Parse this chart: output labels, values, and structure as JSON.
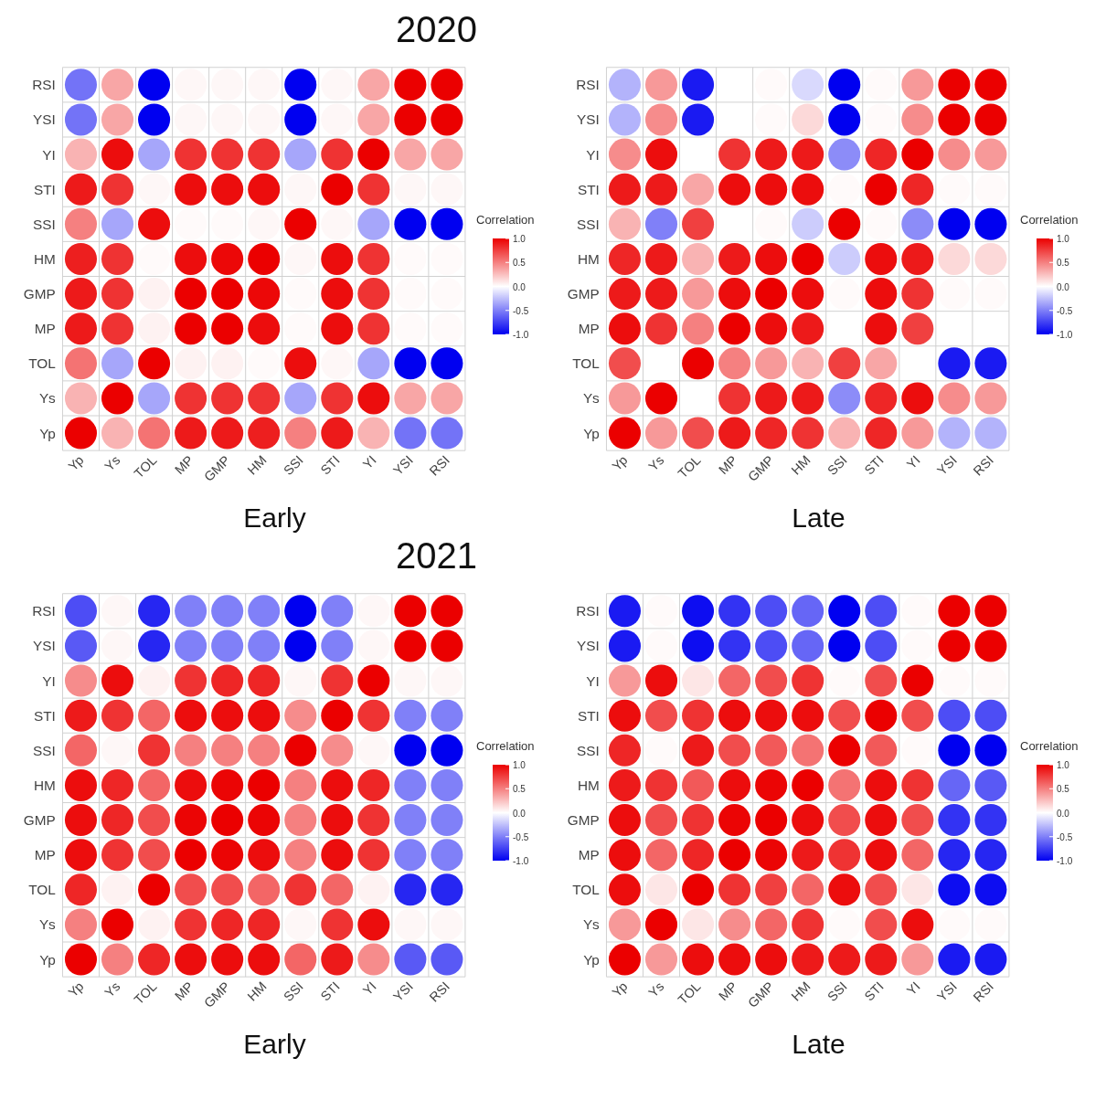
{
  "chart_data": [
    {
      "type": "heatmap",
      "title": "2020",
      "xlabel": "Early",
      "clabel": "Correlation",
      "grid": true,
      "categories": [
        "Yp",
        "Ys",
        "TOL",
        "MP",
        "GMP",
        "HM",
        "SSI",
        "STI",
        "YI",
        "YSI",
        "RSI"
      ],
      "y_categories": [
        "RSI",
        "YSI",
        "YI",
        "STI",
        "SSI",
        "HM",
        "GMP",
        "MP",
        "TOL",
        "Ys",
        "Yp"
      ],
      "clim": [
        -1,
        1
      ],
      "cticks": [
        {
          "value": 1,
          "label": "1.0"
        },
        {
          "value": 0.5,
          "label": "0.5"
        },
        {
          "value": 0,
          "label": "0.0"
        },
        {
          "value": -0.5,
          "label": "-0.5"
        },
        {
          "value": -1,
          "label": "-1.0"
        }
      ],
      "cells": [
        [
          -0.55,
          0.35,
          -1,
          0.03,
          0.03,
          0.03,
          -1,
          0.03,
          0.35,
          1,
          1
        ],
        [
          -0.55,
          0.35,
          -1,
          0.03,
          0.03,
          0.03,
          -1,
          0.03,
          0.35,
          1,
          1
        ],
        [
          0.3,
          0.95,
          -0.35,
          0.8,
          0.8,
          0.8,
          -0.35,
          0.8,
          1,
          0.35,
          0.35
        ],
        [
          0.9,
          0.8,
          0.03,
          0.95,
          0.95,
          0.95,
          0.03,
          1,
          0.8,
          0.03,
          0.03
        ],
        [
          0.5,
          -0.35,
          0.95,
          0.02,
          0.02,
          0.03,
          1,
          0.03,
          -0.35,
          -1,
          -1
        ],
        [
          0.88,
          0.8,
          0.02,
          0.95,
          0.97,
          1,
          0.03,
          0.95,
          0.8,
          0.02,
          0.02
        ],
        [
          0.9,
          0.8,
          0.05,
          1,
          1,
          0.97,
          0.02,
          0.95,
          0.8,
          0.02,
          0.02
        ],
        [
          0.9,
          0.8,
          0.05,
          1,
          1,
          0.95,
          0.02,
          0.95,
          0.8,
          0.02,
          0.02
        ],
        [
          0.55,
          -0.35,
          1,
          0.05,
          0.05,
          0.02,
          0.95,
          0.03,
          -0.35,
          -1,
          -1
        ],
        [
          0.3,
          1,
          -0.35,
          0.8,
          0.8,
          0.8,
          -0.35,
          0.8,
          0.95,
          0.35,
          0.35
        ],
        [
          1,
          0.3,
          0.55,
          0.9,
          0.9,
          0.88,
          0.5,
          0.9,
          0.3,
          -0.55,
          -0.55
        ]
      ]
    },
    {
      "type": "heatmap",
      "xlabel": "Late",
      "clabel": "Correlation",
      "grid": true,
      "categories": [
        "Yp",
        "Ys",
        "TOL",
        "MP",
        "GMP",
        "HM",
        "SSI",
        "STI",
        "YI",
        "YSI",
        "RSI"
      ],
      "y_categories": [
        "RSI",
        "YSI",
        "YI",
        "STI",
        "SSI",
        "HM",
        "GMP",
        "MP",
        "TOL",
        "Ys",
        "Yp"
      ],
      "clim": [
        -1,
        1
      ],
      "cticks": [
        {
          "value": 1,
          "label": "1.0"
        },
        {
          "value": 0.5,
          "label": "0.5"
        },
        {
          "value": 0,
          "label": "0.0"
        },
        {
          "value": -0.5,
          "label": "-0.5"
        },
        {
          "value": -1,
          "label": "-1.0"
        }
      ],
      "cells": [
        [
          -0.3,
          0.4,
          -0.9,
          0,
          0.02,
          -0.15,
          -1,
          0.02,
          0.4,
          1,
          1
        ],
        [
          -0.3,
          0.45,
          -0.9,
          0,
          0.02,
          0.15,
          -1,
          0.02,
          0.45,
          1,
          1
        ],
        [
          0.45,
          0.95,
          0,
          0.8,
          0.9,
          0.9,
          -0.45,
          0.85,
          1,
          0.45,
          0.4
        ],
        [
          0.9,
          0.9,
          0.35,
          0.95,
          0.95,
          0.95,
          0.02,
          1,
          0.85,
          0.02,
          0.02
        ],
        [
          0.3,
          -0.5,
          0.75,
          0,
          0.02,
          -0.2,
          1,
          0.02,
          -0.45,
          -1,
          -1
        ],
        [
          0.85,
          0.9,
          0.3,
          0.9,
          0.95,
          1,
          -0.2,
          0.95,
          0.9,
          0.15,
          0.15
        ],
        [
          0.9,
          0.9,
          0.4,
          0.95,
          1,
          0.95,
          0.02,
          0.95,
          0.8,
          0.02,
          0.02
        ],
        [
          0.95,
          0.8,
          0.5,
          1,
          0.95,
          0.9,
          0,
          0.95,
          0.75,
          0,
          0
        ],
        [
          0.7,
          0,
          1,
          0.5,
          0.4,
          0.3,
          0.75,
          0.35,
          0,
          -0.9,
          -0.9
        ],
        [
          0.4,
          1,
          0,
          0.8,
          0.9,
          0.9,
          -0.45,
          0.85,
          0.95,
          0.45,
          0.4
        ],
        [
          1,
          0.4,
          0.7,
          0.9,
          0.85,
          0.8,
          0.3,
          0.85,
          0.4,
          -0.3,
          -0.3
        ]
      ]
    },
    {
      "type": "heatmap",
      "title": "2021",
      "xlabel": "Early",
      "clabel": "Correlation",
      "grid": true,
      "categories": [
        "Yp",
        "Ys",
        "TOL",
        "MP",
        "GMP",
        "HM",
        "SSI",
        "STI",
        "YI",
        "YSI",
        "RSI"
      ],
      "y_categories": [
        "RSI",
        "YSI",
        "YI",
        "STI",
        "SSI",
        "HM",
        "GMP",
        "MP",
        "TOL",
        "Ys",
        "Yp"
      ],
      "clim": [
        -1,
        1
      ],
      "cticks": [
        {
          "value": 1,
          "label": "1.0"
        },
        {
          "value": 0.5,
          "label": "0.5"
        },
        {
          "value": 0,
          "label": "0.0"
        },
        {
          "value": -0.5,
          "label": "-0.5"
        },
        {
          "value": -1,
          "label": "-1.0"
        }
      ],
      "cells": [
        [
          -0.7,
          0.03,
          -0.85,
          -0.5,
          -0.5,
          -0.5,
          -1,
          -0.5,
          0.03,
          1,
          1
        ],
        [
          -0.65,
          0.03,
          -0.85,
          -0.5,
          -0.5,
          -0.5,
          -1,
          -0.5,
          0.03,
          1,
          1
        ],
        [
          0.45,
          0.95,
          0.05,
          0.8,
          0.85,
          0.85,
          0.03,
          0.8,
          1,
          0.03,
          0.03
        ],
        [
          0.9,
          0.8,
          0.6,
          0.95,
          0.95,
          0.95,
          0.45,
          1,
          0.8,
          -0.5,
          -0.5
        ],
        [
          0.6,
          0.03,
          0.8,
          0.5,
          0.5,
          0.5,
          1,
          0.45,
          0.03,
          -1,
          -1
        ],
        [
          0.95,
          0.85,
          0.6,
          0.95,
          0.98,
          1,
          0.5,
          0.95,
          0.85,
          -0.5,
          -0.5
        ],
        [
          0.95,
          0.85,
          0.7,
          0.98,
          1,
          0.98,
          0.5,
          0.95,
          0.8,
          -0.5,
          -0.5
        ],
        [
          0.95,
          0.8,
          0.7,
          1,
          0.98,
          0.95,
          0.5,
          0.95,
          0.8,
          -0.5,
          -0.5
        ],
        [
          0.85,
          0.05,
          1,
          0.7,
          0.7,
          0.6,
          0.8,
          0.6,
          0.05,
          -0.85,
          -0.85
        ],
        [
          0.5,
          1,
          0.05,
          0.8,
          0.85,
          0.85,
          0.03,
          0.8,
          0.95,
          0.03,
          0.03
        ],
        [
          1,
          0.5,
          0.85,
          0.95,
          0.95,
          0.95,
          0.6,
          0.9,
          0.45,
          -0.65,
          -0.65
        ]
      ]
    },
    {
      "type": "heatmap",
      "xlabel": "Late",
      "clabel": "Correlation",
      "grid": true,
      "categories": [
        "Yp",
        "Ys",
        "TOL",
        "MP",
        "GMP",
        "HM",
        "SSI",
        "STI",
        "YI",
        "YSI",
        "RSI"
      ],
      "y_categories": [
        "RSI",
        "YSI",
        "YI",
        "STI",
        "SSI",
        "HM",
        "GMP",
        "MP",
        "TOL",
        "Ys",
        "Yp"
      ],
      "clim": [
        -1,
        1
      ],
      "cticks": [
        {
          "value": 1,
          "label": "1.0"
        },
        {
          "value": 0.5,
          "label": "0.5"
        },
        {
          "value": 0,
          "label": "0.0"
        },
        {
          "value": -0.5,
          "label": "-0.5"
        },
        {
          "value": -1,
          "label": "-1.0"
        }
      ],
      "cells": [
        [
          -0.9,
          0.02,
          -0.95,
          -0.8,
          -0.7,
          -0.6,
          -1,
          -0.7,
          0.02,
          1,
          1
        ],
        [
          -0.9,
          0.02,
          -0.95,
          -0.8,
          -0.7,
          -0.6,
          -1,
          -0.7,
          0.02,
          1,
          1
        ],
        [
          0.4,
          0.95,
          0.1,
          0.6,
          0.7,
          0.8,
          0.02,
          0.7,
          1,
          0.02,
          0.02
        ],
        [
          0.95,
          0.7,
          0.8,
          0.95,
          0.95,
          0.95,
          0.7,
          1,
          0.7,
          -0.7,
          -0.7
        ],
        [
          0.85,
          0.02,
          0.9,
          0.7,
          0.65,
          0.55,
          1,
          0.65,
          0.02,
          -1,
          -1
        ],
        [
          0.9,
          0.8,
          0.65,
          0.95,
          0.98,
          1,
          0.55,
          0.95,
          0.8,
          -0.6,
          -0.65
        ],
        [
          0.95,
          0.7,
          0.8,
          0.98,
          1,
          0.95,
          0.7,
          0.95,
          0.7,
          -0.8,
          -0.8
        ],
        [
          0.95,
          0.6,
          0.85,
          1,
          0.98,
          0.9,
          0.8,
          0.95,
          0.6,
          -0.85,
          -0.85
        ],
        [
          0.95,
          0.1,
          1,
          0.8,
          0.75,
          0.6,
          0.95,
          0.7,
          0.1,
          -0.95,
          -0.95
        ],
        [
          0.4,
          1,
          0.1,
          0.45,
          0.6,
          0.8,
          0.02,
          0.7,
          0.95,
          0.02,
          0.02
        ],
        [
          1,
          0.4,
          0.95,
          0.95,
          0.95,
          0.9,
          0.9,
          0.9,
          0.4,
          -0.9,
          -0.9
        ]
      ]
    }
  ]
}
